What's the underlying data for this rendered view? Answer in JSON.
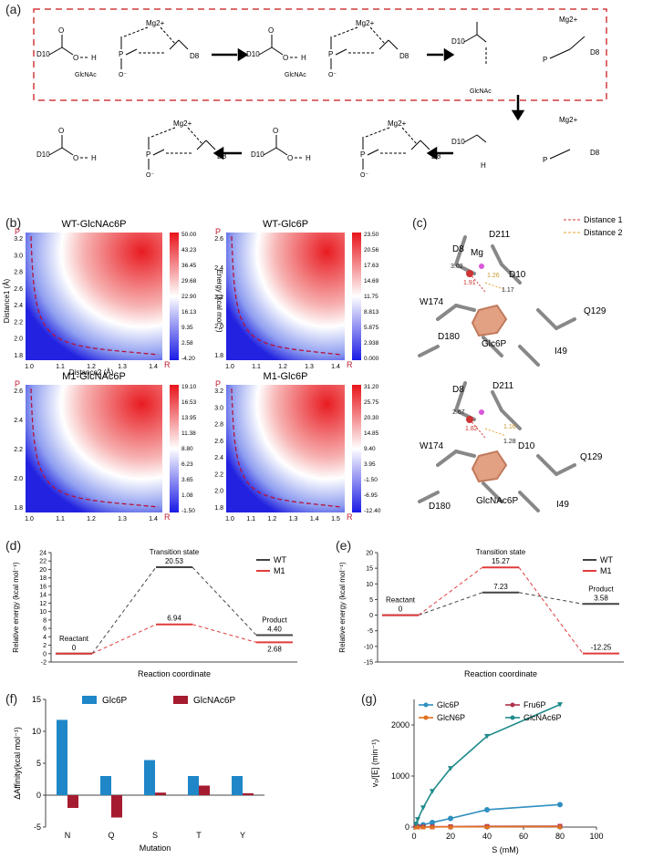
{
  "panel_labels": {
    "a": "(a)",
    "b": "(b)",
    "c": "(c)",
    "d": "(d)",
    "e": "(e)",
    "f": "(f)",
    "g": "(g)"
  },
  "scheme": {
    "groups": {
      "d10": "D10",
      "d8": "D8",
      "mg": "Mg2+",
      "glcnac": "GlcNAc",
      "o": "O",
      "h": "H",
      "p": "P"
    },
    "row1_count": 4,
    "row2_count": 4
  },
  "heatmaps": {
    "energy_axis_label": "Energy (kcal mol⁻¹)",
    "distance1_label": "Distance1 (Å)",
    "distance2_label": "Distance2 (Å)",
    "P": "P",
    "R": "R",
    "maps": [
      {
        "title": "WT-GlcNAc6P",
        "yticks": [
          "3.2",
          "3.0",
          "2.8",
          "2.6",
          "2.4",
          "2.2",
          "2.0",
          "1.8"
        ],
        "xticks": [
          "1.0",
          "1.1",
          "1.2",
          "1.3",
          "1.4"
        ],
        "cbar": [
          "50.00",
          "43.23",
          "36.45",
          "29.68",
          "22.90",
          "16.13",
          "9.35",
          "2.58",
          "-4.20"
        ]
      },
      {
        "title": "WT-Glc6P",
        "yticks": [
          "2.6",
          "2.4",
          "2.2",
          "2.0",
          "1.8"
        ],
        "xticks": [
          "1.0",
          "1.1",
          "1.2",
          "1.3",
          "1.4"
        ],
        "cbar": [
          "23.50",
          "20.56",
          "17.63",
          "14.69",
          "11.75",
          "8.813",
          "5.875",
          "2.938",
          "0.000"
        ]
      },
      {
        "title": "M1-GlcNAc6P",
        "yticks": [
          "2.6",
          "2.4",
          "2.2",
          "2.0",
          "1.8"
        ],
        "xticks": [
          "1.0",
          "1.1",
          "1.2",
          "1.3",
          "1.4"
        ],
        "cbar": [
          "19.10",
          "16.53",
          "13.95",
          "11.38",
          "8.80",
          "6.23",
          "3.65",
          "1.08",
          "-1.50"
        ]
      },
      {
        "title": "M1-Glc6P",
        "yticks": [
          "3.2",
          "3.0",
          "2.8",
          "2.6",
          "2.4",
          "2.2",
          "2.0",
          "1.8"
        ],
        "xticks": [
          "1.0",
          "1.1",
          "1.2",
          "1.3",
          "1.4",
          "1.5"
        ],
        "cbar": [
          "31.20",
          "25.75",
          "20.30",
          "14.85",
          "9.40",
          "3.95",
          "-1.50",
          "-6.95",
          "-12.40"
        ]
      }
    ]
  },
  "structures": {
    "legend": [
      "Distance 1",
      "Distance 2"
    ],
    "top": {
      "labels": [
        "D8",
        "D211",
        "Mg",
        "D10",
        "W174",
        "Q129",
        "D180",
        "Glc6P",
        "I49"
      ],
      "distances": [
        "3.02",
        "1.91",
        "1.26",
        "1.17"
      ]
    },
    "bottom": {
      "labels": [
        "D8",
        "D211",
        "W174",
        "D10",
        "Q129",
        "D180",
        "GlcNAc6P",
        "I49"
      ],
      "distances": [
        "2.67",
        "1.82",
        "1.16",
        "1.28"
      ]
    }
  },
  "chart_data": [
    {
      "type": "line",
      "panel": "d",
      "ylabel": "Relative energy (kcal mol⁻¹)",
      "xlabel": "Reaction coordinate",
      "ylim": [
        -2,
        24
      ],
      "yticks": [
        -2,
        0,
        2,
        4,
        6,
        8,
        10,
        12,
        14,
        16,
        18,
        20,
        22,
        24
      ],
      "stages": [
        "Reactant",
        "Transition state",
        "Product"
      ],
      "series": [
        {
          "name": "WT",
          "color": "#444444",
          "values": [
            0,
            20.53,
            4.4
          ]
        },
        {
          "name": "M1",
          "color": "#e03c3c",
          "values": [
            0,
            6.94,
            2.68
          ]
        }
      ],
      "labels": {
        "reactant": "Reactant",
        "reactant_val": "0",
        "ts": "Transition state",
        "ts_wt": "20.53",
        "ts_m1": "6.94",
        "product": "Product",
        "prod_wt": "4.40",
        "prod_m1": "2.68"
      }
    },
    {
      "type": "line",
      "panel": "e",
      "ylabel": "Relative energy (kcal mol⁻¹)",
      "xlabel": "Reaction coordinate",
      "ylim": [
        -15,
        20
      ],
      "yticks": [
        -15,
        -10,
        -5,
        0,
        5,
        10,
        15,
        20
      ],
      "stages": [
        "Reactant",
        "Transition state",
        "Product"
      ],
      "series": [
        {
          "name": "WT",
          "color": "#444444",
          "values": [
            0,
            7.23,
            3.58
          ]
        },
        {
          "name": "M1",
          "color": "#e03c3c",
          "values": [
            0,
            15.27,
            -12.25
          ]
        }
      ],
      "labels": {
        "reactant": "Reactant",
        "reactant_val": "0",
        "ts": "Transition state",
        "ts_m1": "15.27",
        "ts_wt": "7.23",
        "product": "Product",
        "prod_wt": "3.58",
        "prod_m1": "-12.25"
      }
    },
    {
      "type": "bar",
      "panel": "f",
      "ylabel": "ΔAffinity(kcal mol⁻¹)",
      "xlabel": "Mutation",
      "categories": [
        "N",
        "Q",
        "S",
        "T",
        "Y"
      ],
      "ylim": [
        -5,
        15
      ],
      "yticks": [
        -5,
        0,
        5,
        10,
        15
      ],
      "series": [
        {
          "name": "Glc6P",
          "color": "#1f87c8",
          "values": [
            11.8,
            3.0,
            5.5,
            3.0,
            3.0
          ]
        },
        {
          "name": "GlcNAc6P",
          "color": "#a51c30",
          "values": [
            -2.0,
            -3.5,
            0.4,
            1.5,
            0.3
          ]
        }
      ]
    },
    {
      "type": "scatter",
      "panel": "g",
      "ylabel": "v₀/[E] (min⁻¹)",
      "xlabel": "S (mM)",
      "xlim": [
        0,
        100
      ],
      "ylim": [
        0,
        2500
      ],
      "xticks": [
        0,
        20,
        40,
        60,
        80,
        100
      ],
      "yticks": [
        0,
        1000,
        2000
      ],
      "x": [
        1,
        2,
        5,
        10,
        20,
        40,
        80
      ],
      "series": [
        {
          "name": "Glc6P",
          "color": "#2e8fc0",
          "marker": "circle",
          "values": [
            10,
            20,
            45,
            90,
            170,
            340,
            440
          ]
        },
        {
          "name": "Fru6P",
          "color": "#b0324a",
          "marker": "square",
          "values": [
            1,
            2,
            4,
            6,
            9,
            14,
            18
          ]
        },
        {
          "name": "GlcN6P",
          "color": "#e07020",
          "marker": "triangle",
          "values": [
            0,
            1,
            2,
            3,
            5,
            7,
            9
          ]
        },
        {
          "name": "GlcNAc6P",
          "color": "#1f8a8a",
          "marker": "triangle-down",
          "values": [
            60,
            150,
            380,
            700,
            1150,
            1780,
            2400
          ]
        }
      ]
    }
  ]
}
